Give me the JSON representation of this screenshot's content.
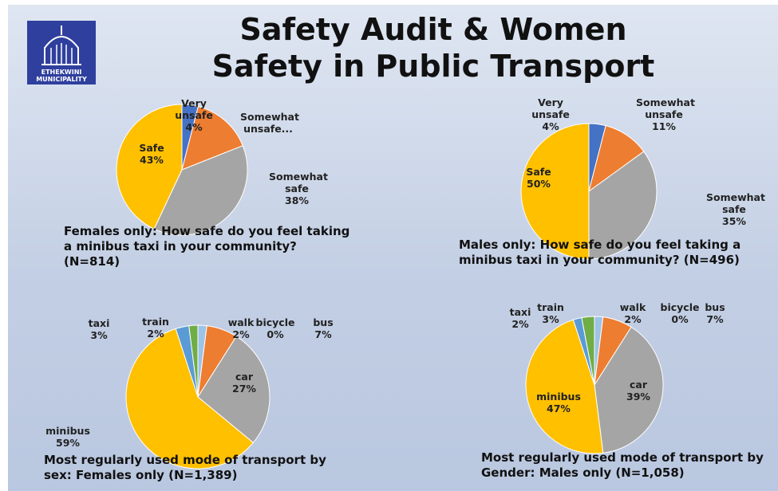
{
  "title": [
    "Safety Audit & Women",
    "Safety in Public Transport"
  ],
  "logo": [
    "ETHEKWINI",
    "MUNICIPALITY"
  ],
  "chart_data": [
    {
      "type": "pie",
      "title": "Females only: How safe do you feel taking a minibus taxi in your community? (N=814)",
      "categories": [
        "Very unsafe",
        "Somewhat unsafe...",
        "Somewhat safe",
        "Safe"
      ],
      "values": [
        4,
        15,
        38,
        43
      ],
      "value_labels": [
        "4%",
        null,
        "38%",
        "43%"
      ],
      "colors": [
        "#4472c4",
        "#ed7d31",
        "#a5a5a5",
        "#ffc000"
      ]
    },
    {
      "type": "pie",
      "title": "Males only: How safe do you feel taking a minibus taxi in your community? (N=496)",
      "categories": [
        "Very unsafe",
        "Somewhat unsafe",
        "Somewhat safe",
        "Safe"
      ],
      "values": [
        4,
        11,
        35,
        50
      ],
      "value_labels": [
        "4%",
        "11%",
        "35%",
        "50%"
      ],
      "colors": [
        "#4472c4",
        "#ed7d31",
        "#a5a5a5",
        "#ffc000"
      ]
    },
    {
      "type": "pie",
      "title": "Most regularly used mode of transport by sex: Females only (N=1,389)",
      "categories": [
        "walk",
        "bicycle",
        "bus",
        "car",
        "minibus",
        "taxi",
        "train"
      ],
      "values": [
        2,
        0,
        7,
        27,
        59,
        3,
        2
      ],
      "value_labels": [
        "2%",
        "0%",
        "7%",
        "27%",
        "59%",
        "3%",
        "2%"
      ],
      "colors": [
        "#9dc3e6",
        "#264478",
        "#ed7d31",
        "#a5a5a5",
        "#ffc000",
        "#5b9bd5",
        "#70ad47"
      ]
    },
    {
      "type": "pie",
      "title": "Most regularly used mode of transport by Gender: Males only (N=1,058)",
      "categories": [
        "walk",
        "bicycle",
        "bus",
        "car",
        "minibus",
        "taxi",
        "train"
      ],
      "values": [
        2,
        0,
        7,
        39,
        47,
        2,
        3
      ],
      "value_labels": [
        "2%",
        "0%",
        "7%",
        "39%",
        "47%",
        "2%",
        "3%"
      ],
      "colors": [
        "#9dc3e6",
        "#264478",
        "#ed7d31",
        "#a5a5a5",
        "#ffc000",
        "#5b9bd5",
        "#70ad47"
      ]
    }
  ]
}
